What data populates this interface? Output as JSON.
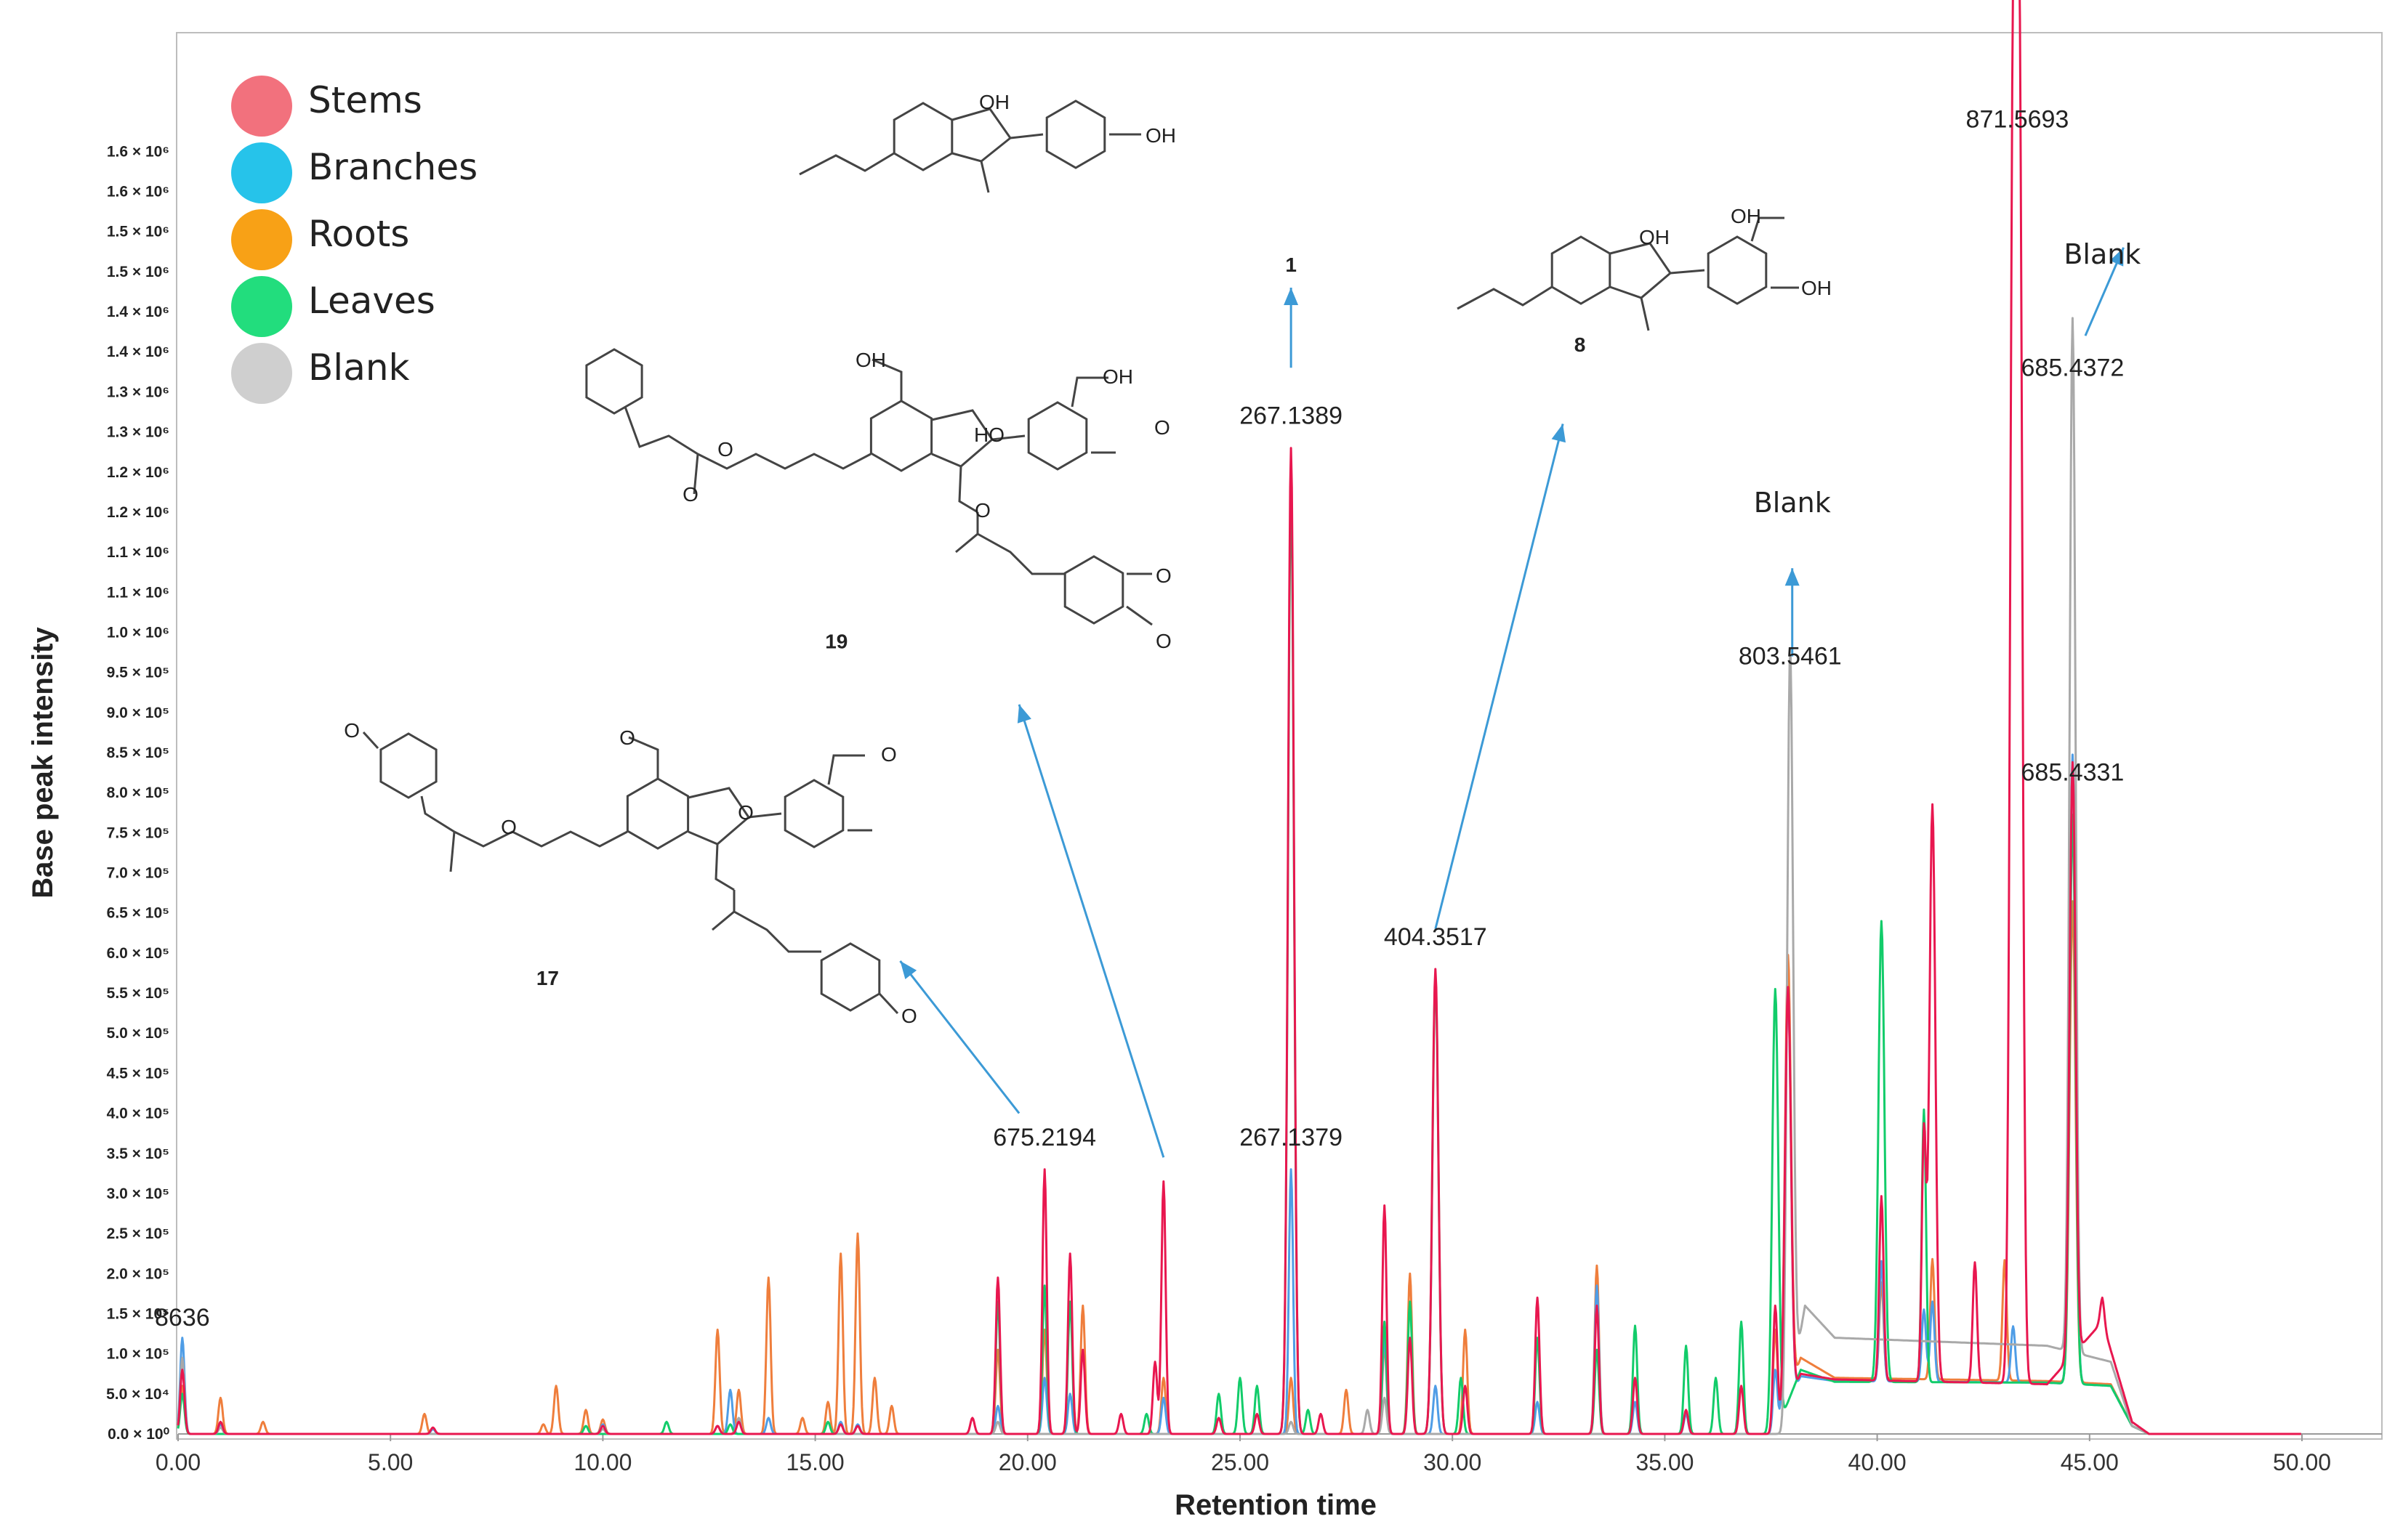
{
  "colors": {
    "Stems": "#e8174f",
    "Branches": "#4f9de6",
    "Roots": "#ef7e3c",
    "Leaves": "#12cc6a",
    "Blank": "#a9a9a9",
    "arrow": "#3c9ad6"
  },
  "legend": {
    "items": [
      {
        "label": "Stems",
        "color": "#f2717d"
      },
      {
        "label": "Branches",
        "color": "#26c3ea"
      },
      {
        "label": "Roots",
        "color": "#f8a116"
      },
      {
        "label": "Leaves",
        "color": "#22dd7d"
      },
      {
        "label": "Blank",
        "color": "#cfcfcf"
      }
    ]
  },
  "chart_data": {
    "type": "line",
    "title": "",
    "xlabel": "Retention time",
    "ylabel": "Base peak intensity",
    "xlim": [
      0,
      50
    ],
    "ylim": [
      0,
      1700000
    ],
    "x_ticks": [
      "0.00",
      "5.00",
      "10.00",
      "15.00",
      "20.00",
      "25.00",
      "30.00",
      "35.00",
      "40.00",
      "45.00",
      "50.00"
    ],
    "y_ticks": [
      {
        "label": "0.0 × 10⁰",
        "value": 0
      },
      {
        "label": "5.0 × 10⁴",
        "value": 50000
      },
      {
        "label": "1.0 × 10⁵",
        "value": 100000
      },
      {
        "label": "1.5 × 10⁵",
        "value": 150000
      },
      {
        "label": "2.0 × 10⁵",
        "value": 200000
      },
      {
        "label": "2.5 × 10⁵",
        "value": 250000
      },
      {
        "label": "3.0 × 10⁵",
        "value": 300000
      },
      {
        "label": "3.5 × 10⁵",
        "value": 350000
      },
      {
        "label": "4.0 × 10⁵",
        "value": 400000
      },
      {
        "label": "4.5 × 10⁵",
        "value": 450000
      },
      {
        "label": "5.0 × 10⁵",
        "value": 500000
      },
      {
        "label": "5.5 × 10⁵",
        "value": 550000
      },
      {
        "label": "6.0 × 10⁵",
        "value": 600000
      },
      {
        "label": "6.5 × 10⁵",
        "value": 650000
      },
      {
        "label": "7.0 × 10⁵",
        "value": 700000
      },
      {
        "label": "7.5 × 10⁵",
        "value": 750000
      },
      {
        "label": "8.0 × 10⁵",
        "value": 800000
      },
      {
        "label": "8.5 × 10⁵",
        "value": 850000
      },
      {
        "label": "9.0 × 10⁵",
        "value": 900000
      },
      {
        "label": "9.5 × 10⁵",
        "value": 950000
      },
      {
        "label": "1.0 × 10⁶",
        "value": 1000000
      },
      {
        "label": "1.1 × 10⁶",
        "value": 1050000
      },
      {
        "label": "1.1 × 10⁶",
        "value": 1100000
      },
      {
        "label": "1.2 × 10⁶",
        "value": 1150000
      },
      {
        "label": "1.2 × 10⁶",
        "value": 1200000
      },
      {
        "label": "1.3 × 10⁶",
        "value": 1250000
      },
      {
        "label": "1.3 × 10⁶",
        "value": 1300000
      },
      {
        "label": "1.4 × 10⁶",
        "value": 1350000
      },
      {
        "label": "1.4 × 10⁶",
        "value": 1400000
      },
      {
        "label": "1.5 × 10⁶",
        "value": 1450000
      },
      {
        "label": "1.5 × 10⁶",
        "value": 1500000
      },
      {
        "label": "1.6 × 10⁶",
        "value": 1550000
      },
      {
        "label": "1.6 × 10⁶",
        "value": 1600000
      }
    ],
    "grid": false,
    "legend_position": "top-left",
    "baselines": [
      {
        "series": "Stems",
        "base": [
          [
            0,
            0
          ],
          [
            37.6,
            0
          ],
          [
            38.2,
            75000
          ],
          [
            39,
            68000
          ],
          [
            44,
            62000
          ],
          [
            45.3,
            140000
          ],
          [
            46,
            15000
          ],
          [
            46.4,
            0
          ],
          [
            50,
            0
          ]
        ]
      },
      {
        "series": "Branches",
        "base": [
          [
            0,
            0
          ],
          [
            37.6,
            0
          ],
          [
            38.2,
            72000
          ],
          [
            39,
            66000
          ],
          [
            44,
            64000
          ],
          [
            45.5,
            60000
          ],
          [
            46,
            10000
          ],
          [
            46.4,
            0
          ],
          [
            50,
            0
          ]
        ]
      },
      {
        "series": "Roots",
        "base": [
          [
            0,
            0
          ],
          [
            37.6,
            0
          ],
          [
            38.2,
            95000
          ],
          [
            39,
            70000
          ],
          [
            44,
            66000
          ],
          [
            45.5,
            62000
          ],
          [
            46,
            10000
          ],
          [
            46.4,
            0
          ],
          [
            50,
            0
          ]
        ]
      },
      {
        "series": "Leaves",
        "base": [
          [
            0,
            0
          ],
          [
            37.6,
            0
          ],
          [
            38.2,
            80000
          ],
          [
            39,
            65000
          ],
          [
            44,
            64000
          ],
          [
            45.5,
            60000
          ],
          [
            46,
            10000
          ],
          [
            46.4,
            0
          ],
          [
            50,
            0
          ]
        ]
      },
      {
        "series": "Blank",
        "base": [
          [
            0,
            0
          ],
          [
            37.8,
            0
          ],
          [
            38.3,
            160000
          ],
          [
            39,
            120000
          ],
          [
            44,
            110000
          ],
          [
            45.5,
            90000
          ],
          [
            46,
            10000
          ],
          [
            46.4,
            0
          ],
          [
            50,
            0
          ]
        ]
      }
    ],
    "series": [
      {
        "name": "Stems",
        "peaks": [
          [
            0.1,
            80000
          ],
          [
            1.0,
            15000
          ],
          [
            6.0,
            8000
          ],
          [
            10.0,
            10000
          ],
          [
            12.7,
            10000
          ],
          [
            13.2,
            15000
          ],
          [
            15.6,
            12000
          ],
          [
            16.0,
            10000
          ],
          [
            18.7,
            20000
          ],
          [
            19.3,
            195000
          ],
          [
            20.4,
            330000
          ],
          [
            21.0,
            225000
          ],
          [
            21.3,
            105000
          ],
          [
            22.2,
            25000
          ],
          [
            23.0,
            90000
          ],
          [
            23.2,
            315000
          ],
          [
            24.5,
            20000
          ],
          [
            25.4,
            25000
          ],
          [
            26.2,
            1230000
          ],
          [
            26.9,
            25000
          ],
          [
            28.4,
            285000
          ],
          [
            29.0,
            120000
          ],
          [
            29.6,
            580000
          ],
          [
            30.3,
            60000
          ],
          [
            32.0,
            170000
          ],
          [
            33.4,
            160000
          ],
          [
            34.3,
            70000
          ],
          [
            35.5,
            30000
          ],
          [
            36.8,
            60000
          ],
          [
            37.6,
            160000
          ],
          [
            37.9,
            520000
          ],
          [
            40.1,
            230000
          ],
          [
            41.1,
            310000
          ],
          [
            41.3,
            720000
          ],
          [
            42.3,
            150000
          ],
          [
            43.2,
            1600000
          ],
          [
            43.35,
            1600000
          ],
          [
            44.6,
            740000
          ],
          [
            45.3,
            30000
          ]
        ]
      },
      {
        "name": "Branches",
        "peaks": [
          [
            0.1,
            120000
          ],
          [
            1.0,
            12000
          ],
          [
            6.0,
            6000
          ],
          [
            10.0,
            12000
          ],
          [
            13.0,
            55000
          ],
          [
            13.9,
            20000
          ],
          [
            15.6,
            15000
          ],
          [
            16.0,
            12000
          ],
          [
            19.3,
            35000
          ],
          [
            20.4,
            70000
          ],
          [
            21.0,
            50000
          ],
          [
            23.2,
            45000
          ],
          [
            26.2,
            330000
          ],
          [
            28.4,
            120000
          ],
          [
            29.6,
            60000
          ],
          [
            32.0,
            40000
          ],
          [
            33.4,
            185000
          ],
          [
            34.3,
            40000
          ],
          [
            35.5,
            25000
          ],
          [
            37.6,
            80000
          ],
          [
            37.9,
            520000
          ],
          [
            40.1,
            150000
          ],
          [
            41.1,
            90000
          ],
          [
            41.3,
            100000
          ],
          [
            43.2,
            70000
          ],
          [
            44.6,
            785000
          ]
        ]
      },
      {
        "name": "Roots",
        "peaks": [
          [
            0.1,
            60000
          ],
          [
            1.0,
            45000
          ],
          [
            2.0,
            15000
          ],
          [
            5.8,
            25000
          ],
          [
            8.6,
            12000
          ],
          [
            8.9,
            60000
          ],
          [
            9.6,
            30000
          ],
          [
            10.0,
            18000
          ],
          [
            12.7,
            130000
          ],
          [
            13.2,
            55000
          ],
          [
            13.9,
            195000
          ],
          [
            14.7,
            20000
          ],
          [
            15.3,
            40000
          ],
          [
            15.6,
            225000
          ],
          [
            16.0,
            250000
          ],
          [
            16.4,
            70000
          ],
          [
            16.8,
            35000
          ],
          [
            19.3,
            105000
          ],
          [
            20.4,
            130000
          ],
          [
            21.3,
            160000
          ],
          [
            23.2,
            70000
          ],
          [
            26.2,
            70000
          ],
          [
            27.5,
            55000
          ],
          [
            28.4,
            110000
          ],
          [
            29.0,
            200000
          ],
          [
            30.3,
            130000
          ],
          [
            33.4,
            210000
          ],
          [
            37.6,
            130000
          ],
          [
            37.9,
            550000
          ],
          [
            40.1,
            120000
          ],
          [
            41.3,
            150000
          ],
          [
            43.0,
            150000
          ],
          [
            44.6,
            600000
          ]
        ]
      },
      {
        "name": "Leaves",
        "peaks": [
          [
            0.1,
            50000
          ],
          [
            9.6,
            10000
          ],
          [
            11.5,
            15000
          ],
          [
            13.0,
            12000
          ],
          [
            15.3,
            15000
          ],
          [
            19.3,
            165000
          ],
          [
            20.4,
            185000
          ],
          [
            21.0,
            165000
          ],
          [
            22.8,
            25000
          ],
          [
            24.5,
            50000
          ],
          [
            25.0,
            70000
          ],
          [
            25.4,
            60000
          ],
          [
            26.2,
            1180000
          ],
          [
            26.6,
            30000
          ],
          [
            28.4,
            140000
          ],
          [
            29.0,
            165000
          ],
          [
            29.6,
            570000
          ],
          [
            30.2,
            70000
          ],
          [
            32.0,
            120000
          ],
          [
            33.4,
            105000
          ],
          [
            34.3,
            135000
          ],
          [
            35.5,
            110000
          ],
          [
            36.2,
            70000
          ],
          [
            36.8,
            140000
          ],
          [
            37.6,
            555000
          ],
          [
            40.1,
            575000
          ],
          [
            41.1,
            340000
          ],
          [
            44.6,
            710000
          ]
        ]
      },
      {
        "name": "Blank",
        "peaks": [
          [
            0.1,
            95000
          ],
          [
            1.0,
            8000
          ],
          [
            10.0,
            6000
          ],
          [
            12.7,
            10000
          ],
          [
            13.2,
            20000
          ],
          [
            19.3,
            15000
          ],
          [
            26.2,
            15000
          ],
          [
            28.0,
            30000
          ],
          [
            28.4,
            45000
          ],
          [
            37.95,
            930000
          ],
          [
            44.6,
            1290000
          ]
        ]
      }
    ],
    "annotations": [
      {
        "text": "8636",
        "x": 0.1,
        "y": 115000
      },
      {
        "text": "675.2194",
        "x": 20.4,
        "y": 340000
      },
      {
        "text": "267.1379",
        "x": 26.2,
        "y": 340000
      },
      {
        "text": "404.3517",
        "x": 29.6,
        "y": 590000
      },
      {
        "text": "803.5461",
        "x": 37.95,
        "y": 940000
      },
      {
        "text": "685.4331",
        "x": 44.6,
        "y": 795000
      },
      {
        "text": "685.4372",
        "x": 44.6,
        "y": 1300000
      },
      {
        "text": "871.5693",
        "x": 43.3,
        "y": 1610000
      },
      {
        "text": "267.1389",
        "x": 26.2,
        "y": 1240000
      }
    ],
    "callouts": [
      {
        "text": "Blank",
        "x": 38.0,
        "y": 1150000
      },
      {
        "text": "Blank",
        "x": 45.3,
        "y": 1460000
      }
    ],
    "compounds": [
      {
        "label": "1",
        "x": 26.2,
        "y": 1450000
      },
      {
        "label": "8",
        "x": 33.0,
        "y": 1350000
      },
      {
        "label": "19",
        "x": 15.5,
        "y": 980000
      },
      {
        "label": "17",
        "x": 8.7,
        "y": 560000
      }
    ],
    "arrows": [
      {
        "from": [
          26.2,
          1330000
        ],
        "to": [
          26.2,
          1430000
        ]
      },
      {
        "from": [
          29.6,
          630000
        ],
        "to": [
          32.6,
          1260000
        ]
      },
      {
        "from": [
          23.2,
          345000
        ],
        "to": [
          19.8,
          910000
        ]
      },
      {
        "from": [
          19.8,
          400000
        ],
        "to": [
          17.0,
          590000
        ]
      },
      {
        "from": [
          38.0,
          970000
        ],
        "to": [
          38.0,
          1080000
        ]
      },
      {
        "from": [
          44.9,
          1370000
        ],
        "to": [
          45.8,
          1480000
        ]
      }
    ],
    "structure_labels": [
      "OH",
      "OH",
      "OH",
      "OH",
      "OH",
      "OH",
      "HO",
      "OH",
      "O",
      "O",
      "O",
      "O",
      "O",
      "O",
      "O",
      "O",
      "O",
      "O",
      "O",
      "O"
    ]
  }
}
